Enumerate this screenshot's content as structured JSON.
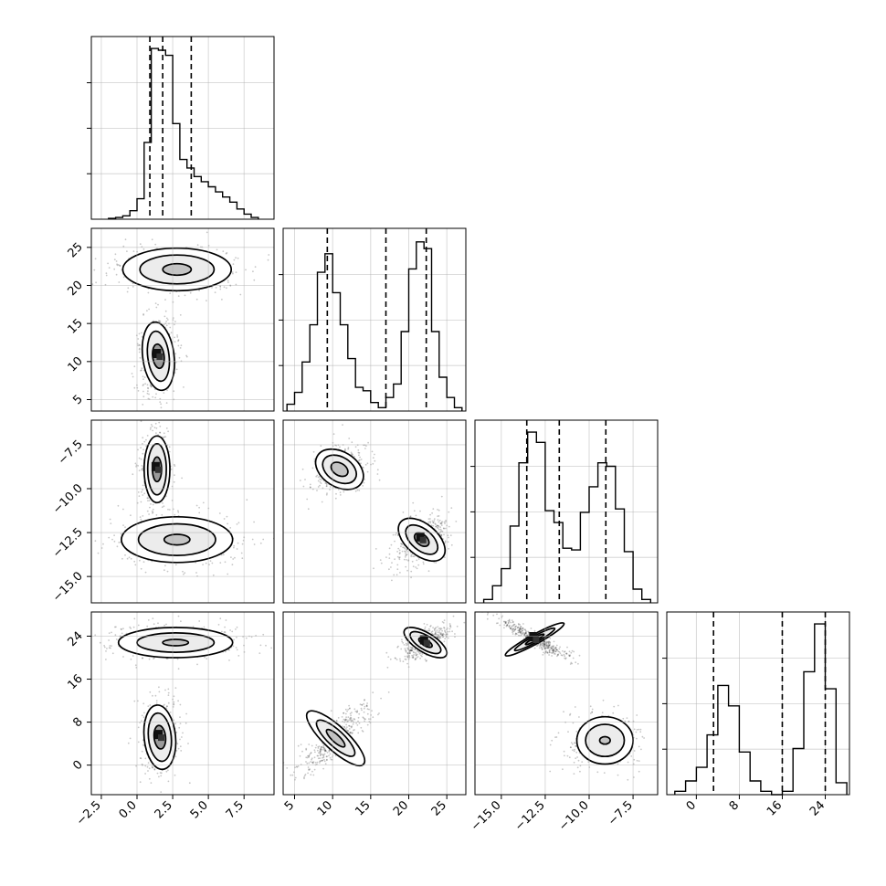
{
  "chart_data": {
    "type": "corner",
    "parameters": 4,
    "grid": true,
    "axes": {
      "0": {
        "lim": [
          -3.2,
          9.6
        ],
        "ticks": [
          -2.5,
          0.0,
          2.5,
          5.0,
          7.5
        ],
        "tick_labels": [
          "−2.5",
          "0.0",
          "2.5",
          "5.0",
          "7.5"
        ]
      },
      "1": {
        "lim": [
          3.5,
          27.5
        ],
        "ticks": [
          5,
          10,
          15,
          20,
          25
        ],
        "tick_labels": [
          "5",
          "10",
          "15",
          "20",
          "25"
        ]
      },
      "2": {
        "lim": [
          -16.5,
          -6.1
        ],
        "ticks": [
          -15.0,
          -12.5,
          -10.0,
          -7.5
        ],
        "tick_labels": [
          "−15.0",
          "−12.5",
          "−10.0",
          "−7.5"
        ]
      },
      "3": {
        "lim": [
          -5.5,
          28.5
        ],
        "ticks": [
          0,
          8,
          16,
          24
        ],
        "tick_labels": [
          "0",
          "8",
          "16",
          "24"
        ]
      }
    },
    "histograms": [
      {
        "param": 0,
        "bin_edges": [
          -2.0,
          -1.5,
          -1.0,
          -0.5,
          0.0,
          0.5,
          1.0,
          1.5,
          2.0,
          2.5,
          3.0,
          3.5,
          4.0,
          4.5,
          5.0,
          5.5,
          6.0,
          6.5,
          7.0,
          7.5,
          8.0,
          8.5
        ],
        "counts": [
          0.005,
          0.01,
          0.02,
          0.05,
          0.12,
          0.45,
          1.0,
          0.99,
          0.96,
          0.56,
          0.35,
          0.3,
          0.25,
          0.22,
          0.19,
          0.16,
          0.13,
          0.1,
          0.06,
          0.03,
          0.01
        ],
        "ylim": [
          0,
          1.07
        ],
        "quantiles": [
          0.9,
          1.8,
          3.8
        ]
      },
      {
        "param": 1,
        "bin_edges": [
          4,
          5,
          6,
          7,
          8,
          9,
          10,
          11,
          12,
          13,
          14,
          15,
          16,
          17,
          18,
          19,
          20,
          21,
          22,
          23,
          24,
          25,
          26,
          27
        ],
        "counts": [
          0.04,
          0.11,
          0.29,
          0.51,
          0.82,
          0.93,
          0.7,
          0.51,
          0.31,
          0.14,
          0.12,
          0.05,
          0.02,
          0.08,
          0.16,
          0.47,
          0.84,
          1.0,
          0.96,
          0.47,
          0.2,
          0.08,
          0.02
        ],
        "ylim": [
          0,
          1.08
        ],
        "quantiles": [
          9.3,
          17.0,
          22.3
        ]
      },
      {
        "param": 2,
        "bin_edges": [
          -16.0,
          -15.5,
          -15.0,
          -14.5,
          -14.0,
          -13.5,
          -13.0,
          -12.5,
          -12.0,
          -11.5,
          -11.0,
          -10.5,
          -10.0,
          -9.5,
          -9.0,
          -8.5,
          -8.0,
          -7.5,
          -7.0,
          -6.5
        ],
        "counts": [
          0.02,
          0.1,
          0.2,
          0.45,
          0.82,
          1.0,
          0.94,
          0.54,
          0.47,
          0.32,
          0.31,
          0.53,
          0.68,
          0.82,
          0.8,
          0.55,
          0.3,
          0.08,
          0.02
        ],
        "ylim": [
          0,
          1.07
        ],
        "quantiles": [
          -13.55,
          -11.7,
          -9.05
        ]
      },
      {
        "param": 3,
        "bin_edges": [
          -4,
          -2,
          0,
          2,
          4,
          6,
          8,
          10,
          12,
          14,
          16,
          18,
          20,
          22,
          24,
          26,
          28
        ],
        "counts": [
          0.02,
          0.08,
          0.16,
          0.35,
          0.64,
          0.52,
          0.25,
          0.08,
          0.02,
          0.0,
          0.02,
          0.27,
          0.72,
          1.0,
          0.62,
          0.07
        ],
        "ylim": [
          0,
          1.07
        ],
        "quantiles": [
          3.2,
          16.0,
          24.0
        ]
      }
    ],
    "panels_2d": [
      {
        "x": 0,
        "y": 1,
        "modes": [
          {
            "center": [
              2.8,
              22.1
            ],
            "rx": [
              3.8,
              2.6,
              1.0
            ],
            "ry": [
              2.8,
              1.9,
              0.75
            ],
            "angle": 0,
            "peak": 0.28
          },
          {
            "center": [
              1.5,
              10.7
            ],
            "rx": [
              1.1,
              0.75,
              0.4
            ],
            "ry": [
              4.5,
              3.3,
              1.6
            ],
            "angle": 0.12,
            "peak": 1.0
          }
        ]
      },
      {
        "x": 0,
        "y": 2,
        "modes": [
          {
            "center": [
              1.4,
              -8.9
            ],
            "rx": [
              0.9,
              0.65,
              0.32
            ],
            "ry": [
              1.9,
              1.45,
              0.7
            ],
            "angle": 0,
            "peak": 1.0
          },
          {
            "center": [
              2.8,
              -12.9
            ],
            "rx": [
              3.9,
              2.7,
              0.9
            ],
            "ry": [
              1.3,
              0.9,
              0.3
            ],
            "angle": 0,
            "peak": 0.3
          }
        ]
      },
      {
        "x": 0,
        "y": 3,
        "modes": [
          {
            "center": [
              2.7,
              22.8
            ],
            "rx": [
              4.0,
              2.7,
              0.9
            ],
            "ry": [
              2.8,
              1.8,
              0.6
            ],
            "angle": 0,
            "peak": 0.35
          },
          {
            "center": [
              1.6,
              5.2
            ],
            "rx": [
              1.1,
              0.8,
              0.4
            ],
            "ry": [
              6.0,
              4.5,
              2.2
            ],
            "angle": 0.1,
            "peak": 1.0
          }
        ]
      },
      {
        "x": 1,
        "y": 2,
        "modes": [
          {
            "center": [
              10.9,
              -8.9
            ],
            "rx": [
              3.4,
              2.4,
              1.2
            ],
            "ry": [
              1.0,
              0.7,
              0.35
            ],
            "angle": -0.55,
            "peak": 0.45
          },
          {
            "center": [
              21.7,
              -12.9
            ],
            "rx": [
              3.6,
              2.5,
              1.1
            ],
            "ry": [
              0.9,
              0.6,
              0.3
            ],
            "angle": -0.7,
            "peak": 1.0
          }
        ]
      },
      {
        "x": 1,
        "y": 3,
        "modes": [
          {
            "center": [
              10.4,
              5.0
            ],
            "rx": [
              5.0,
              3.3,
              1.6
            ],
            "ry": [
              2.2,
              1.5,
              0.7
            ],
            "angle": -0.75,
            "peak": 0.4
          },
          {
            "center": [
              22.2,
              22.8
            ],
            "rx": [
              3.2,
              2.3,
              1.0
            ],
            "ry": [
              1.8,
              1.3,
              0.6
            ],
            "angle": -0.55,
            "peak": 1.0
          }
        ]
      },
      {
        "x": 2,
        "y": 3,
        "modes": [
          {
            "center": [
              -13.1,
              23.4
            ],
            "rx": [
              1.9,
              1.3,
              0.6
            ],
            "ry": [
              0.9,
              0.6,
              0.3
            ],
            "angle": 0.5,
            "peak": 1.0
          },
          {
            "center": [
              -9.1,
              4.6
            ],
            "rx": [
              1.6,
              1.1,
              0.3
            ],
            "ry": [
              4.4,
              3.0,
              0.7
            ],
            "angle": 0,
            "peak": 0.12
          }
        ]
      }
    ]
  }
}
